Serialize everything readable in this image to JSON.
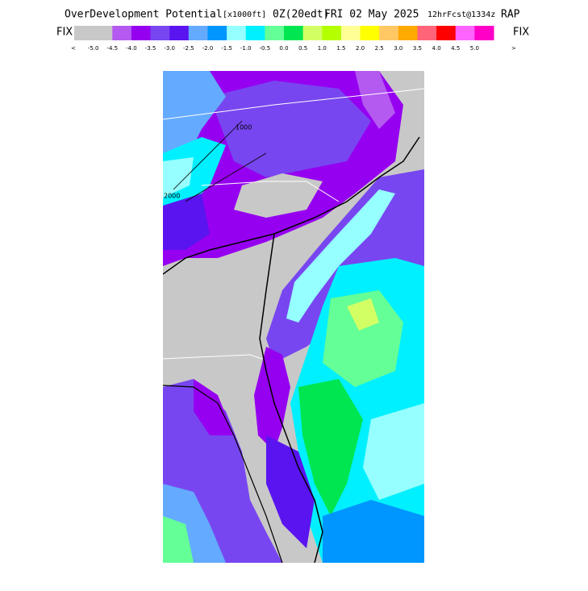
{
  "header": {
    "title": "OverDevelopment Potential",
    "units": "[x1000ft]",
    "valid": "0Z(20edt)",
    "date": "FRI 02 May 2025",
    "forecast": "12hrFcst@1334z",
    "model": "RAP"
  },
  "legend": {
    "left_label": "FIX",
    "right_label": "FIX",
    "left_arrow": "<",
    "right_arrow": ">",
    "colors": [
      "#c8c8c8",
      "#b45af0",
      "#9600f0",
      "#7846f0",
      "#5a14f0",
      "#64aaff",
      "#0096ff",
      "#96ffff",
      "#00f0ff",
      "#64ff96",
      "#00e650",
      "#d2ff64",
      "#b4ff00",
      "#ffff96",
      "#ffff00",
      "#ffc864",
      "#ffaa00",
      "#ff6478",
      "#ff0000",
      "#ff64ff",
      "#ff00c8"
    ],
    "labels": [
      "-5.0",
      "-4.5",
      "-4.0",
      "-3.5",
      "-3.0",
      "-2.5",
      "-2.0",
      "-1.5",
      "-1.0",
      "-0.5",
      "0.0",
      "0.5",
      "1.0",
      "1.5",
      "2.0",
      "2.5",
      "3.0",
      "3.5",
      "4.0",
      "4.5",
      "5.0"
    ]
  },
  "map": {
    "contour_labels": [
      "2000",
      "1000"
    ]
  }
}
